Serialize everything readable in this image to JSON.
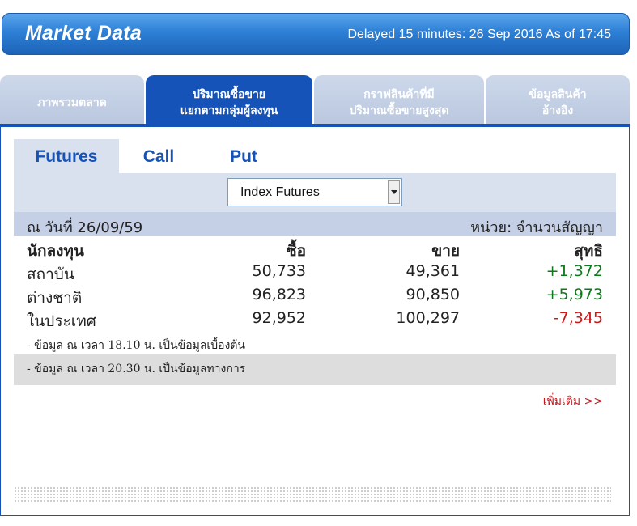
{
  "header": {
    "title": "Market Data",
    "status": "Delayed 15 minutes: 26 Sep 2016 As of 17:45"
  },
  "main_tabs": [
    {
      "line1": "ภาพรวมตลาด",
      "line2": ""
    },
    {
      "line1": "ปริมาณซื้อขาย",
      "line2": "แยกตามกลุ่มผู้ลงทุน",
      "active": true
    },
    {
      "line1": "กราฟสินค้าที่มี",
      "line2": "ปริมาณซื้อขายสูงสุด"
    },
    {
      "line1": "ข้อมูลสินค้า",
      "line2": "อ้างอิง"
    }
  ],
  "sub_tabs": [
    "Futures",
    "Call",
    "Put"
  ],
  "select": {
    "value": "Index Futures"
  },
  "info": {
    "date": "ณ วันที่ 26/09/59",
    "unit": "หน่วย: จำนวนสัญญา"
  },
  "table": {
    "headers": [
      "นักลงทุน",
      "ซื้อ",
      "ขาย",
      "สุทธิ"
    ],
    "rows": [
      {
        "name": "สถาบัน",
        "buy": "50,733",
        "sell": "49,361",
        "net": "+1,372"
      },
      {
        "name": "ต่างชาติ",
        "buy": "96,823",
        "sell": "90,850",
        "net": "+5,973"
      },
      {
        "name": "ในประเทศ",
        "buy": "92,952",
        "sell": "100,297",
        "net": "-7,345"
      }
    ]
  },
  "notes": [
    "- ข้อมูล ณ เวลา 18.10 น. เป็นข้อมูลเบื้องต้น",
    "- ข้อมูล ณ เวลา 20.30 น. เป็นข้อมูลทางการ"
  ],
  "more_link": "เพิ่มเติม >>",
  "colors": {
    "primary": "#1553b8",
    "positive": "#0c7a1c",
    "negative": "#d01818"
  },
  "icons": {
    "select_arrow": "chevron-down-icon"
  }
}
